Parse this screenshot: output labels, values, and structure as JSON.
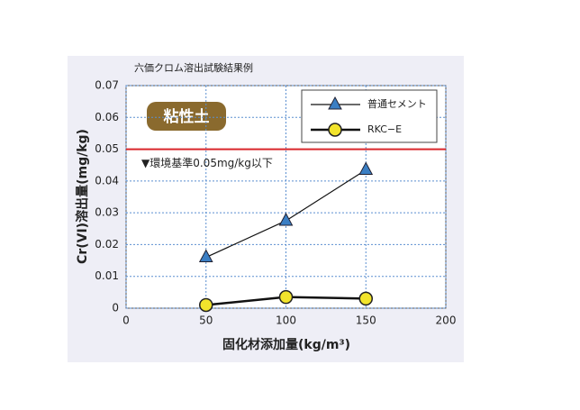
{
  "chart_data": {
    "type": "line",
    "title": "六価クロム溶出試験結果例",
    "annotation": "粘性土",
    "x_label": "固化材添加量(kg/m³)",
    "y_label": "Cr(VI)溶出量(mg/kg)",
    "x": [
      50,
      100,
      150
    ],
    "series": [
      {
        "name": "普通セメント",
        "color": "#3b7fc4",
        "marker": "triangle",
        "values": [
          0.016,
          0.0275,
          0.0435
        ]
      },
      {
        "name": "RKC−E",
        "color": "#f2e42c",
        "marker": "circle",
        "values": [
          0.001,
          0.0035,
          0.003
        ]
      }
    ],
    "ref_line": {
      "value": 0.05,
      "label": "▼環境基準0.05mg/kg以下",
      "color": "#d9262b"
    },
    "xlim": [
      0,
      200
    ],
    "xticks": [
      0,
      50,
      100,
      150,
      200
    ],
    "ylim": [
      0,
      0.07
    ],
    "yticks": [
      0,
      0.01,
      0.02,
      0.03,
      0.04,
      0.05,
      0.06,
      0.07
    ],
    "grid": true
  }
}
